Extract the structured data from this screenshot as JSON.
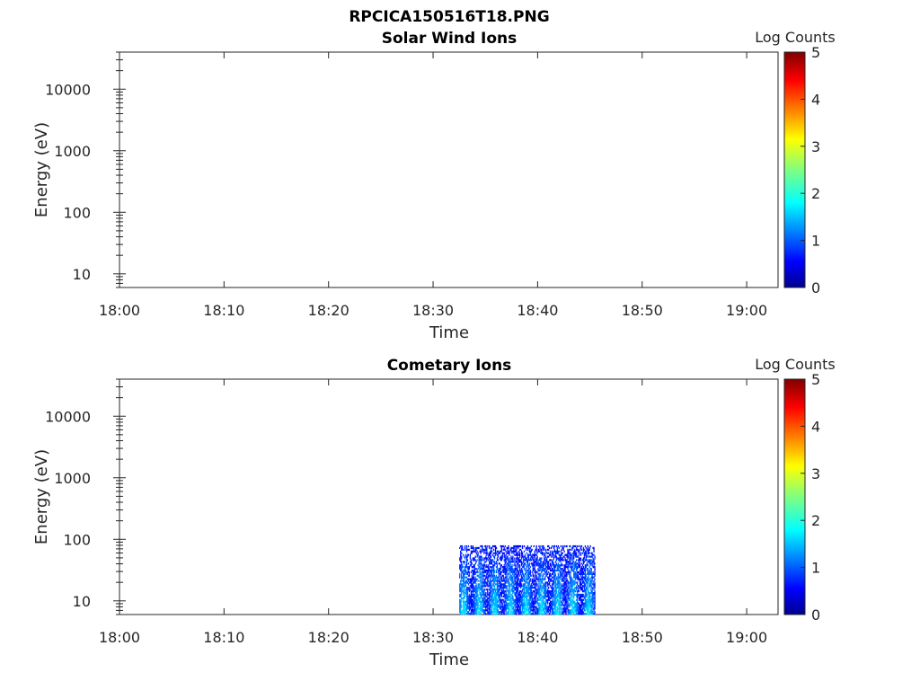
{
  "figure_title": "RPCICA150516T18.PNG",
  "colorbar": {
    "label": "Log Counts",
    "ticks": [
      "0",
      "1",
      "2",
      "3",
      "4",
      "5"
    ],
    "range": [
      0,
      5
    ],
    "colormap": "jet"
  },
  "chart_data": [
    {
      "type": "heatmap",
      "title": "Solar Wind Ions",
      "xlabel": "Time",
      "ylabel": "Energy (eV)",
      "x_ticks": [
        "18:00",
        "18:10",
        "18:20",
        "18:30",
        "18:40",
        "18:50",
        "19:00"
      ],
      "y_ticks": [
        "10",
        "100",
        "1000",
        "10000"
      ],
      "y_scale": "log",
      "xlim": [
        "18:00",
        "19:03"
      ],
      "ylim": [
        6,
        40000
      ],
      "colorbar_label": "Log Counts",
      "clim": [
        0,
        5
      ],
      "data_regions": []
    },
    {
      "type": "heatmap",
      "title": "Cometary Ions",
      "xlabel": "Time",
      "ylabel": "Energy (eV)",
      "x_ticks": [
        "18:00",
        "18:10",
        "18:20",
        "18:30",
        "18:40",
        "18:50",
        "19:00"
      ],
      "y_ticks": [
        "10",
        "100",
        "1000",
        "10000"
      ],
      "y_scale": "log",
      "xlim": [
        "18:00",
        "19:03"
      ],
      "ylim": [
        6,
        40000
      ],
      "colorbar_label": "Log Counts",
      "clim": [
        0,
        5
      ],
      "data_regions": [
        {
          "t_start": "18:32.5",
          "t_end": "18:45.5",
          "e_min": 6,
          "e_max": 80,
          "log_counts_range": [
            0,
            2
          ]
        }
      ]
    }
  ]
}
